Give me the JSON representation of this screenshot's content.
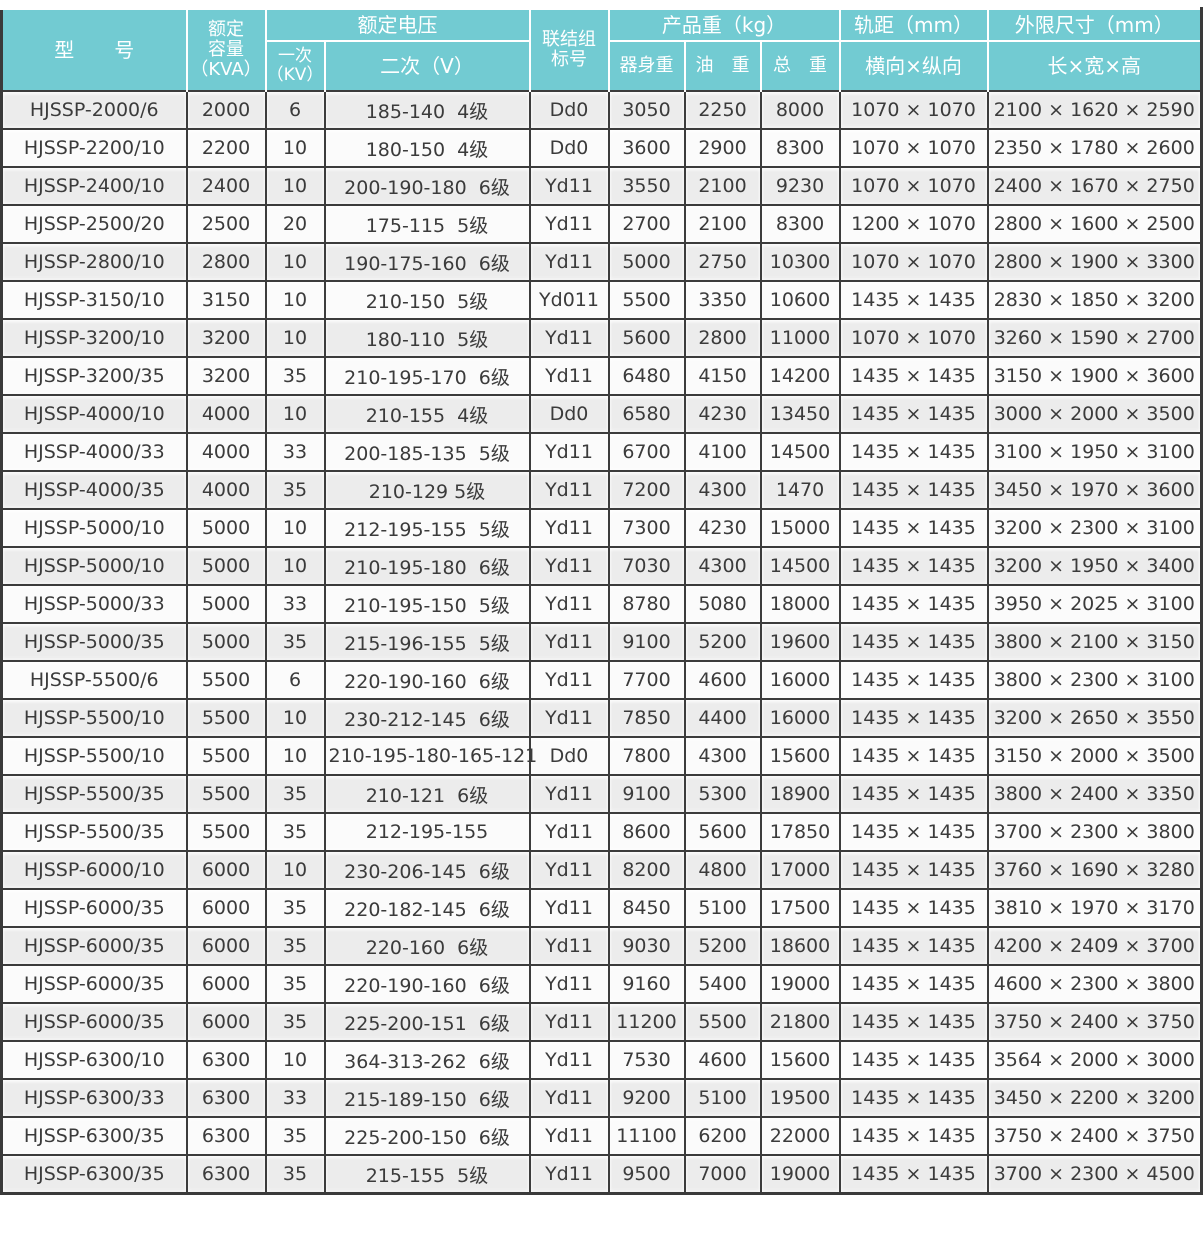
{
  "colors": {
    "header_bg": "#72cbd2",
    "header_text": "#ffffff",
    "row_odd": "#ececec",
    "row_even": "#fbfbfb",
    "grid_line": "#3c3c3c"
  },
  "header": {
    "model": "型　　号",
    "capacity": "额定\n容量\n（KVA）",
    "voltage_group": "额定电压",
    "primary": "一次\n（KV）",
    "secondary": "二次（V）",
    "connection": "联结组\n标号",
    "weight_group": "产品重（kg）",
    "body_weight": "器身重",
    "oil_weight": "油　重",
    "total_weight": "总　重",
    "gauge_group": "轨距（mm）",
    "gauge_sub": "横向×纵向",
    "dimensions_group": "外限尺寸（mm）",
    "dimensions_sub": "长×宽×高"
  },
  "rows": [
    [
      "HJSSP-2000/6",
      "2000",
      "6",
      "185-140  4级",
      "Dd0",
      "3050",
      "2250",
      "8000",
      "1070 × 1070",
      "2100 × 1620 × 2590"
    ],
    [
      "HJSSP-2200/10",
      "2200",
      "10",
      "180-150  4级",
      "Dd0",
      "3600",
      "2900",
      "8300",
      "1070 × 1070",
      "2350 × 1780 × 2600"
    ],
    [
      "HJSSP-2400/10",
      "2400",
      "10",
      "200-190-180  6级",
      "Yd11",
      "3550",
      "2100",
      "9230",
      "1070 × 1070",
      "2400 × 1670 × 2750"
    ],
    [
      "HJSSP-2500/20",
      "2500",
      "20",
      "175-115  5级",
      "Yd11",
      "2700",
      "2100",
      "8300",
      "1200 × 1070",
      "2800 × 1600 × 2500"
    ],
    [
      "HJSSP-2800/10",
      "2800",
      "10",
      "190-175-160  6级",
      "Yd11",
      "5000",
      "2750",
      "10300",
      "1070 × 1070",
      "2800 × 1900 × 3300"
    ],
    [
      "HJSSP-3150/10",
      "3150",
      "10",
      "210-150  5级",
      "Yd011",
      "5500",
      "3350",
      "10600",
      "1435 × 1435",
      "2830 × 1850 × 3200"
    ],
    [
      "HJSSP-3200/10",
      "3200",
      "10",
      "180-110  5级",
      "Yd11",
      "5600",
      "2800",
      "11000",
      "1070 × 1070",
      "3260 × 1590 × 2700"
    ],
    [
      "HJSSP-3200/35",
      "3200",
      "35",
      "210-195-170  6级",
      "Yd11",
      "6480",
      "4150",
      "14200",
      "1435 × 1435",
      "3150 × 1900 × 3600"
    ],
    [
      "HJSSP-4000/10",
      "4000",
      "10",
      "210-155  4级",
      "Dd0",
      "6580",
      "4230",
      "13450",
      "1435 × 1435",
      "3000 × 2000 × 3500"
    ],
    [
      "HJSSP-4000/33",
      "4000",
      "33",
      "200-185-135  5级",
      "Yd11",
      "6700",
      "4100",
      "14500",
      "1435 × 1435",
      "3100 × 1950 × 3100"
    ],
    [
      "HJSSP-4000/35",
      "4000",
      "35",
      "210-129 5级",
      "Yd11",
      "7200",
      "4300",
      "1470",
      "1435 × 1435",
      "3450 × 1970 × 3600"
    ],
    [
      "HJSSP-5000/10",
      "5000",
      "10",
      "212-195-155  5级",
      "Yd11",
      "7300",
      "4230",
      "15000",
      "1435 × 1435",
      "3200 × 2300 × 3100"
    ],
    [
      "HJSSP-5000/10",
      "5000",
      "10",
      "210-195-180  6级",
      "Yd11",
      "7030",
      "4300",
      "14500",
      "1435 × 1435",
      "3200 × 1950 × 3400"
    ],
    [
      "HJSSP-5000/33",
      "5000",
      "33",
      "210-195-150  5级",
      "Yd11",
      "8780",
      "5080",
      "18000",
      "1435 × 1435",
      "3950 × 2025 × 3100"
    ],
    [
      "HJSSP-5000/35",
      "5000",
      "35",
      "215-196-155  5级",
      "Yd11",
      "9100",
      "5200",
      "19600",
      "1435 × 1435",
      "3800 × 2100 × 3150"
    ],
    [
      "HJSSP-5500/6",
      "5500",
      "6",
      "220-190-160  6级",
      "Yd11",
      "7700",
      "4600",
      "16000",
      "1435 × 1435",
      "3800 × 2300 × 3100"
    ],
    [
      "HJSSP-5500/10",
      "5500",
      "10",
      "230-212-145  6级",
      "Yd11",
      "7850",
      "4400",
      "16000",
      "1435 × 1435",
      "3200 × 2650 × 3550"
    ],
    [
      "HJSSP-5500/10",
      "5500",
      "10",
      "210-195-180-165-121",
      "Dd0",
      "7800",
      "4300",
      "15600",
      "1435 × 1435",
      "3150 × 2000 × 3500"
    ],
    [
      "HJSSP-5500/35",
      "5500",
      "35",
      "210-121  6级",
      "Yd11",
      "9100",
      "5300",
      "18900",
      "1435 × 1435",
      "3800 × 2400 × 3350"
    ],
    [
      "HJSSP-5500/35",
      "5500",
      "35",
      "212-195-155",
      "Yd11",
      "8600",
      "5600",
      "17850",
      "1435 × 1435",
      "3700 × 2300 × 3800"
    ],
    [
      "HJSSP-6000/10",
      "6000",
      "10",
      "230-206-145  6级",
      "Yd11",
      "8200",
      "4800",
      "17000",
      "1435 × 1435",
      "3760 × 1690 × 3280"
    ],
    [
      "HJSSP-6000/35",
      "6000",
      "35",
      "220-182-145  6级",
      "Yd11",
      "8450",
      "5100",
      "17500",
      "1435 × 1435",
      "3810 × 1970 × 3170"
    ],
    [
      "HJSSP-6000/35",
      "6000",
      "35",
      "220-160  6级",
      "Yd11",
      "9030",
      "5200",
      "18600",
      "1435 × 1435",
      "4200 × 2409 × 3700"
    ],
    [
      "HJSSP-6000/35",
      "6000",
      "35",
      "220-190-160  6级",
      "Yd11",
      "9160",
      "5400",
      "19000",
      "1435 × 1435",
      "4600 × 2300 × 3800"
    ],
    [
      "HJSSP-6000/35",
      "6000",
      "35",
      "225-200-151  6级",
      "Yd11",
      "11200",
      "5500",
      "21800",
      "1435 × 1435",
      "3750 × 2400 × 3750"
    ],
    [
      "HJSSP-6300/10",
      "6300",
      "10",
      "364-313-262  6级",
      "Yd11",
      "7530",
      "4600",
      "15600",
      "1435 × 1435",
      "3564 × 2000 × 3000"
    ],
    [
      "HJSSP-6300/33",
      "6300",
      "33",
      "215-189-150  6级",
      "Yd11",
      "9200",
      "5100",
      "19500",
      "1435 × 1435",
      "3450 × 2200 × 3200"
    ],
    [
      "HJSSP-6300/35",
      "6300",
      "35",
      "225-200-150  6级",
      "Yd11",
      "11100",
      "6200",
      "22000",
      "1435 × 1435",
      "3750 × 2400 × 3750"
    ],
    [
      "HJSSP-6300/35",
      "6300",
      "35",
      "215-155  5级",
      "Yd11",
      "9500",
      "7000",
      "19000",
      "1435 × 1435",
      "3700 × 2300 × 4500"
    ]
  ]
}
